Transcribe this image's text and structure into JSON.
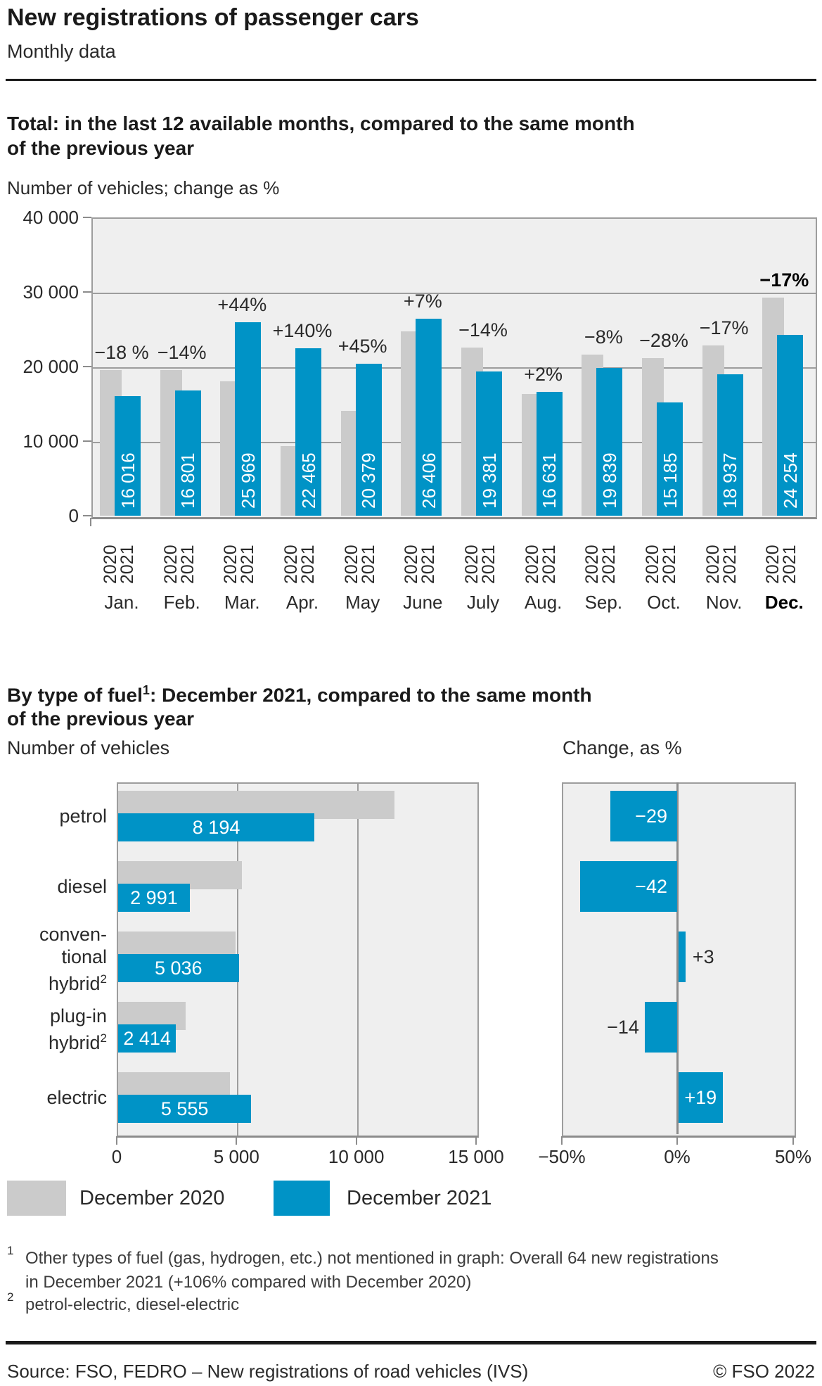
{
  "header": {
    "title": "New registrations of passenger cars",
    "subtitle": "Monthly data"
  },
  "monthly_section": {
    "heading_line1": "Total: in the last 12 available months, compared to the same month",
    "heading_line2": "of the previous year",
    "axis_note": "Number of vehicles; change as %"
  },
  "fuel_section": {
    "heading_prefix": "By type of fuel",
    "heading_sup": "1",
    "heading_line1_rest": ": December 2021, compared to the same month",
    "heading_line2": "of the previous year",
    "left_subhead": "Number of vehicles",
    "right_subhead": "Change, as %"
  },
  "colors": {
    "bar_2020": "#cbcbcb",
    "bar_2021": "#0093c6",
    "plot_background": "#efefef",
    "gridline": "#9d9d9d",
    "axis": "#8c8c8c"
  },
  "legend": {
    "items": [
      {
        "label": "December 2020",
        "color_key": "bar_2020"
      },
      {
        "label": "December 2021",
        "color_key": "bar_2021"
      }
    ]
  },
  "footnotes": [
    {
      "sup": "1",
      "lines": [
        "Other types of fuel (gas, hydrogen, etc.) not mentioned in graph: Overall 64 new registrations",
        "in December 2021 (+106% compared with December 2020)"
      ]
    },
    {
      "sup": "2",
      "lines": [
        "petrol-electric, diesel-electric"
      ]
    }
  ],
  "footer": {
    "source": "Source: FSO, FEDRO – New registrations of road vehicles (IVS)",
    "copyright": "© FSO 2022"
  },
  "chart_data": [
    {
      "type": "bar",
      "title": "Total: in the last 12 available months, compared to the same month of the previous year",
      "ylabel": "Number of vehicles; change as %",
      "categories": [
        "Jan.",
        "Feb.",
        "Mar.",
        "Apr.",
        "May",
        "June",
        "July",
        "Aug.",
        "Sep.",
        "Oct.",
        "Nov.",
        "Dec."
      ],
      "emphasis_index": 11,
      "series": [
        {
          "name": "2020",
          "color_key": "bar_2020",
          "estimated_from_bars": true,
          "values": [
            19530,
            19540,
            18030,
            9360,
            14050,
            24680,
            22540,
            16300,
            21560,
            21090,
            22820,
            29220
          ]
        },
        {
          "name": "2021",
          "color_key": "bar_2021",
          "values": [
            16016,
            16801,
            25969,
            22465,
            20379,
            26406,
            19381,
            16631,
            19839,
            15185,
            18937,
            24254
          ]
        }
      ],
      "value_labels_2021": [
        "16 016",
        "16 801",
        "25 969",
        "22 465",
        "20 379",
        "26 406",
        "19 381",
        "16 631",
        "19 839",
        "15 185",
        "18 937",
        "24 254"
      ],
      "pct_labels": [
        "−18 %",
        "−14%",
        "+44%",
        "+140%",
        "+45%",
        "+7%",
        "−14%",
        "+2%",
        "−8%",
        "−28%",
        "−17%",
        "−17%"
      ],
      "ylim": [
        0,
        40000
      ],
      "yticks": [
        {
          "value": 0,
          "label": "0"
        },
        {
          "value": 10000,
          "label": "10 000"
        },
        {
          "value": 20000,
          "label": "20 000"
        },
        {
          "value": 30000,
          "label": "30 000"
        },
        {
          "value": 40000,
          "label": "40 000"
        }
      ]
    },
    {
      "type": "bar",
      "orientation": "horizontal",
      "title": "Number of vehicles",
      "categories": [
        "petrol",
        "diesel",
        "conventional hybrid",
        "plug-in hybrid",
        "electric"
      ],
      "category_display": [
        [
          {
            "t": "petrol"
          }
        ],
        [
          {
            "t": "diesel"
          }
        ],
        [
          {
            "t": "conven-"
          },
          {
            "t": "tional"
          },
          {
            "t": "hybrid",
            "sup": "2"
          }
        ],
        [
          {
            "t": "plug-in"
          },
          {
            "t": "hybrid",
            "sup": "2"
          }
        ],
        [
          {
            "t": "electric"
          }
        ]
      ],
      "series": [
        {
          "name": "December 2020",
          "color_key": "bar_2020",
          "estimated_from_bars": true,
          "values": [
            11540,
            5160,
            4890,
            2810,
            4670
          ]
        },
        {
          "name": "December 2021",
          "color_key": "bar_2021",
          "values": [
            8194,
            2991,
            5036,
            2414,
            5555
          ]
        }
      ],
      "value_labels_2021": [
        "8 194",
        "2 991",
        "5 036",
        "2 414",
        "5 555"
      ],
      "xlim": [
        0,
        15000
      ],
      "xticks": [
        {
          "value": 0,
          "label": "0"
        },
        {
          "value": 5000,
          "label": "5 000"
        },
        {
          "value": 10000,
          "label": "10 000"
        },
        {
          "value": 15000,
          "label": "15 000"
        }
      ]
    },
    {
      "type": "bar",
      "orientation": "horizontal",
      "title": "Change, as %",
      "categories": [
        "petrol",
        "diesel",
        "conventional hybrid",
        "plug-in hybrid",
        "electric"
      ],
      "values": [
        -29,
        -42,
        3,
        -14,
        19
      ],
      "value_labels": [
        "−29",
        "−42",
        "+3",
        "−14",
        "+19"
      ],
      "label_placement": [
        "inside",
        "inside",
        "outside",
        "outside",
        "inside"
      ],
      "xlim": [
        -50,
        50
      ],
      "xticks": [
        {
          "value": -50,
          "label": "−50%"
        },
        {
          "value": 0,
          "label": "0%"
        },
        {
          "value": 50,
          "label": "50%"
        }
      ]
    }
  ]
}
